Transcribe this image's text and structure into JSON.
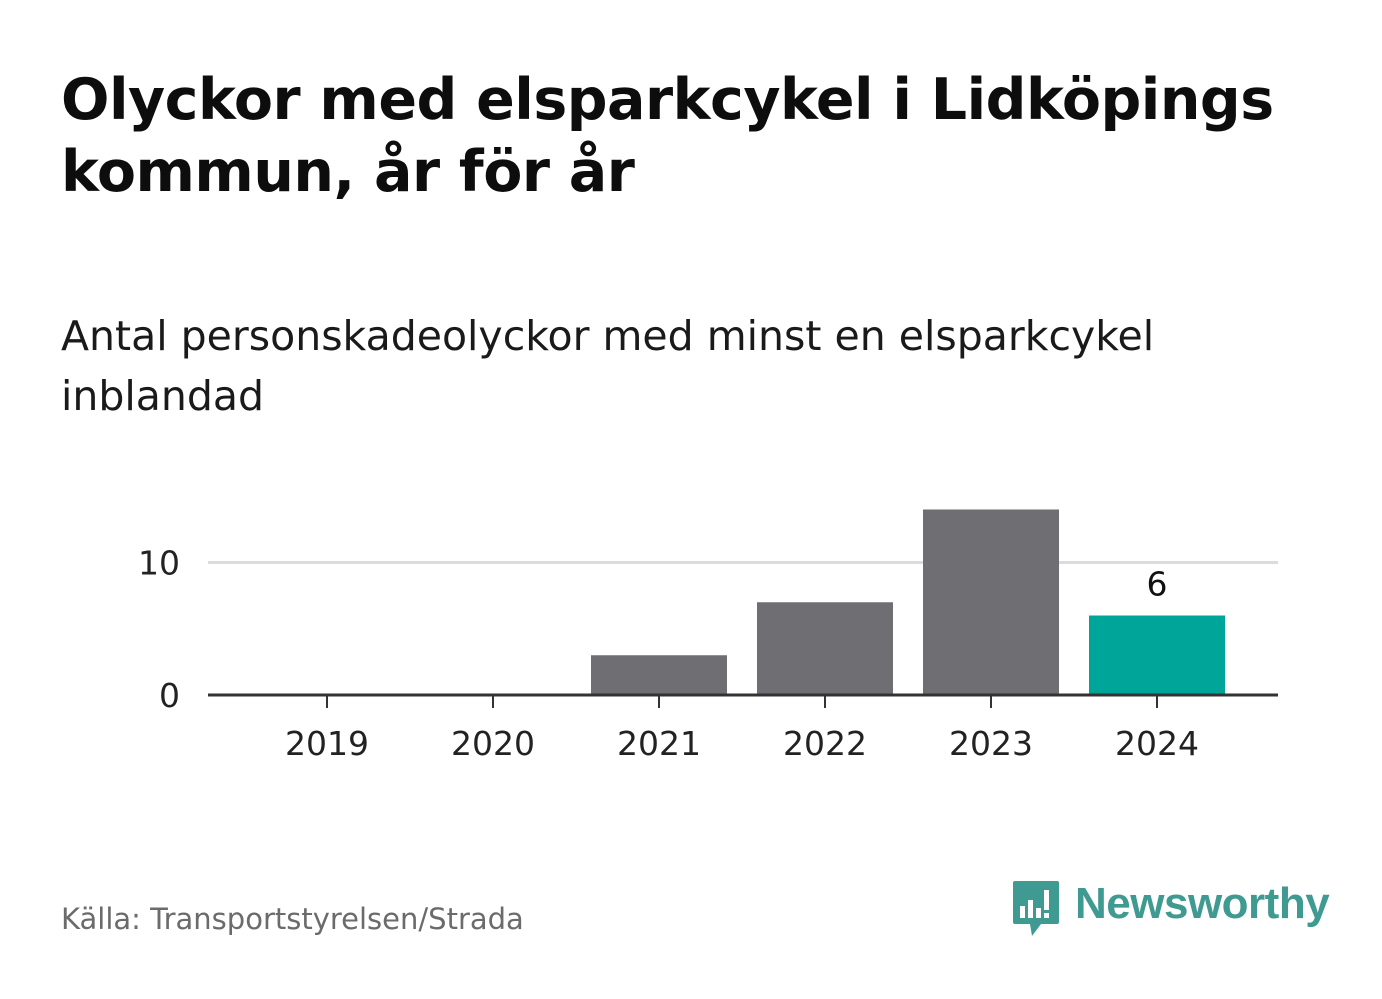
{
  "header": {
    "title": "Olyckor med elsparkcykel i Lidköpings kommun, år för år",
    "subtitle": "Antal personskadeolyckor med minst en elsparkcykel inblandad"
  },
  "footer": {
    "source": "Källa: Transportstyrelsen/Strada",
    "brand": "Newsworthy",
    "brand_icon": "newsworthy-logo-icon"
  },
  "colors": {
    "bar_default": "#6e6e73",
    "bar_highlight": "#00a59a",
    "grid": "#dcdcdc",
    "axis": "#333333",
    "brand": "#3f9a92"
  },
  "chart_data": {
    "type": "bar",
    "categories": [
      "2019",
      "2020",
      "2021",
      "2022",
      "2023",
      "2024"
    ],
    "values": [
      0,
      0,
      3,
      7,
      14,
      6
    ],
    "highlight_index": 5,
    "data_labels": [
      {
        "index": 5,
        "text": "6"
      }
    ],
    "yticks": [
      0,
      10
    ],
    "ylim": [
      0,
      14
    ],
    "grid": true,
    "title": "",
    "xlabel": "",
    "ylabel": ""
  }
}
